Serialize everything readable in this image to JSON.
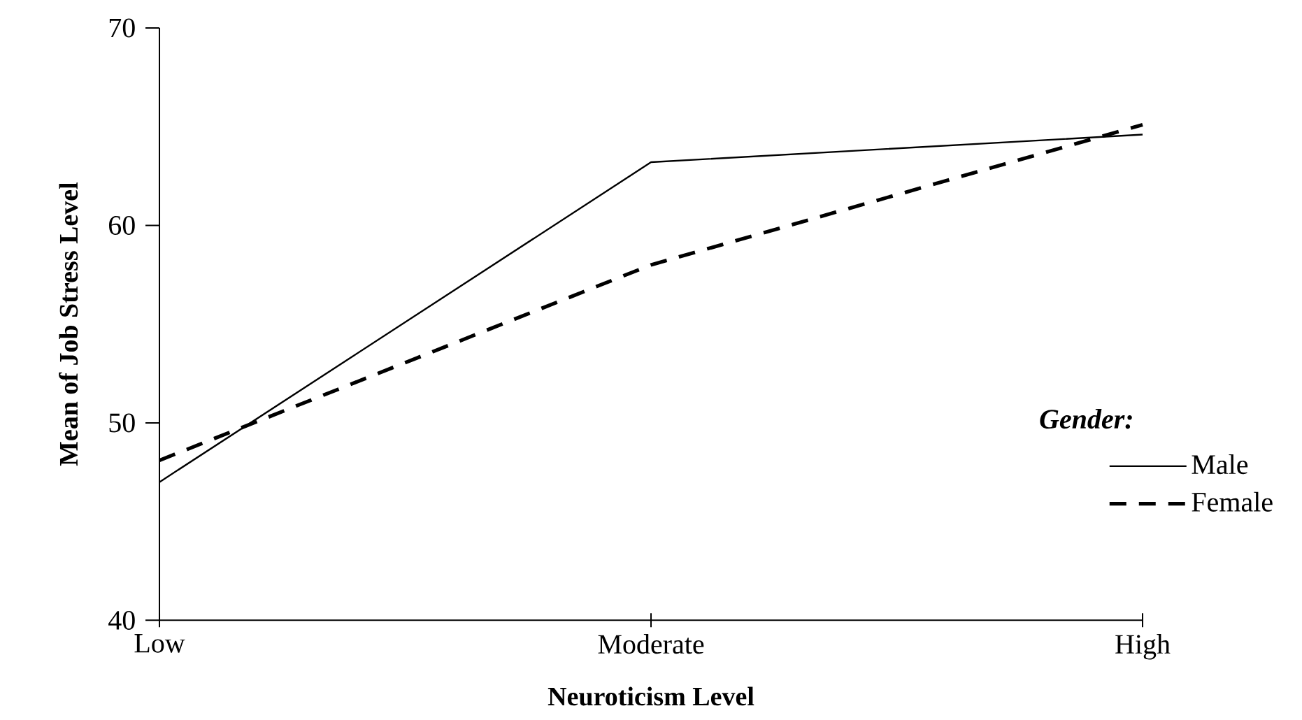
{
  "chart_data": {
    "type": "line",
    "xlabel": "Neuroticism  Level",
    "ylabel": "Mean of Job Stress Level",
    "legend_title": "Gender:",
    "categories": [
      "Low",
      "Moderate",
      "High"
    ],
    "series": [
      {
        "name": "Male",
        "color": "#000000",
        "line_style": "solid",
        "values": [
          47.0,
          63.2,
          64.6
        ]
      },
      {
        "name": "Female",
        "color": "#000000",
        "line_style": "dashed",
        "values": [
          48.1,
          58.0,
          65.1
        ]
      }
    ],
    "ylim": [
      40,
      70
    ],
    "yticks": [
      40,
      50,
      60,
      70
    ],
    "legend": "right",
    "marker": "none"
  }
}
